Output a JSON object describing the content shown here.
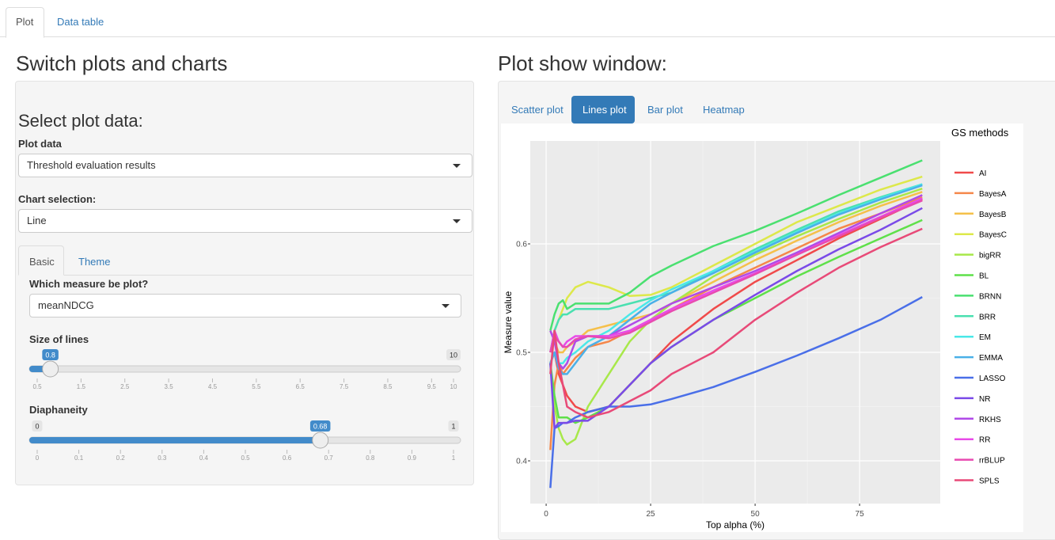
{
  "tabs": [
    "Plot",
    "Data table"
  ],
  "left": {
    "title": "Switch plots and charts",
    "panel_title": "Select plot data:",
    "plot_data": {
      "label": "Plot data",
      "value": "Threshold evaluation results"
    },
    "chart_selection": {
      "label": "Chart selection:",
      "value": "Line"
    },
    "subtabs": [
      "Basic",
      "Theme"
    ],
    "measure": {
      "label": "Which measure be plot?",
      "value": "meanNDCG"
    },
    "size_slider": {
      "label": "Size of lines",
      "min": 0.5,
      "max": 10,
      "value": 0.8,
      "ticks": [
        0.5,
        1.5,
        2.5,
        3.5,
        4.5,
        5.5,
        6.5,
        7.5,
        8.5,
        9.5,
        10
      ]
    },
    "alpha_slider": {
      "label": "Diaphaneity",
      "min": 0,
      "max": 1,
      "value": 0.68,
      "ticks": [
        0,
        0.1,
        0.2,
        0.3,
        0.4,
        0.5,
        0.6,
        0.7,
        0.8,
        0.9,
        1
      ]
    }
  },
  "right": {
    "title": "Plot show window:",
    "tabs": [
      "Scatter plot",
      "Lines plot",
      "Bar plot",
      "Heatmap"
    ]
  },
  "chart_data": {
    "type": "line",
    "xlabel": "Top alpha (%)",
    "ylabel": "Measure value",
    "legend_title": "GS methods",
    "legend": "right",
    "grid": true,
    "x": [
      1,
      2,
      3,
      4,
      5,
      7,
      10,
      15,
      20,
      25,
      30,
      40,
      50,
      60,
      70,
      80,
      90
    ],
    "xlim": [
      -3.8,
      94.3
    ],
    "xticks": [
      0,
      25,
      50,
      75
    ],
    "ylim": [
      0.3606,
      0.6949
    ],
    "yticks": [
      0.4,
      0.5,
      0.6
    ],
    "series": [
      {
        "name": "AI",
        "color": "#f04a4a",
        "values": [
          0.49,
          0.5,
          0.48,
          0.47,
          0.46,
          0.45,
          0.445,
          0.45,
          0.47,
          0.49,
          0.51,
          0.54,
          0.565,
          0.585,
          0.605,
          0.623,
          0.641
        ]
      },
      {
        "name": "BayesA",
        "color": "#f5874a",
        "values": [
          0.41,
          0.47,
          0.49,
          0.48,
          0.485,
          0.495,
          0.505,
          0.51,
          0.52,
          0.53,
          0.54,
          0.56,
          0.578,
          0.596,
          0.614,
          0.628,
          0.643
        ]
      },
      {
        "name": "BayesB",
        "color": "#f5c04a",
        "values": [
          0.5,
          0.51,
          0.5,
          0.5,
          0.505,
          0.51,
          0.52,
          0.525,
          0.53,
          0.535,
          0.545,
          0.565,
          0.585,
          0.603,
          0.62,
          0.635,
          0.648
        ]
      },
      {
        "name": "BayesC",
        "color": "#dde84a",
        "values": [
          0.5,
          0.52,
          0.53,
          0.54,
          0.55,
          0.56,
          0.565,
          0.56,
          0.552,
          0.553,
          0.56,
          0.58,
          0.6,
          0.62,
          0.635,
          0.65,
          0.662
        ]
      },
      {
        "name": "bigRR",
        "color": "#a8e84a",
        "values": [
          0.49,
          0.45,
          0.43,
          0.42,
          0.415,
          0.42,
          0.45,
          0.48,
          0.51,
          0.53,
          0.545,
          0.57,
          0.59,
          0.607,
          0.623,
          0.638,
          0.651
        ]
      },
      {
        "name": "BL",
        "color": "#5fe04a",
        "values": [
          0.49,
          0.46,
          0.44,
          0.44,
          0.44,
          0.435,
          0.44,
          0.45,
          0.47,
          0.49,
          0.505,
          0.53,
          0.55,
          0.57,
          0.588,
          0.605,
          0.622
        ]
      },
      {
        "name": "BRNN",
        "color": "#4ae070",
        "values": [
          0.52,
          0.535,
          0.545,
          0.548,
          0.54,
          0.545,
          0.545,
          0.545,
          0.555,
          0.57,
          0.58,
          0.598,
          0.612,
          0.628,
          0.645,
          0.661,
          0.677
        ]
      },
      {
        "name": "BRR",
        "color": "#4ae0b0",
        "values": [
          0.5,
          0.52,
          0.53,
          0.535,
          0.535,
          0.54,
          0.54,
          0.54,
          0.545,
          0.55,
          0.555,
          0.575,
          0.595,
          0.613,
          0.63,
          0.643,
          0.655
        ]
      },
      {
        "name": "EM",
        "color": "#4ae8e8",
        "values": [
          0.49,
          0.5,
          0.49,
          0.49,
          0.495,
          0.5,
          0.51,
          0.52,
          0.535,
          0.548,
          0.558,
          0.575,
          0.593,
          0.611,
          0.628,
          0.642,
          0.655
        ]
      },
      {
        "name": "EMMA",
        "color": "#4ab0e8",
        "values": [
          0.49,
          0.5,
          0.485,
          0.48,
          0.48,
          0.49,
          0.505,
          0.515,
          0.53,
          0.545,
          0.555,
          0.573,
          0.592,
          0.61,
          0.627,
          0.641,
          0.654
        ]
      },
      {
        "name": "LASSO",
        "color": "#4a6fe8",
        "values": [
          0.375,
          0.43,
          0.432,
          0.435,
          0.435,
          0.44,
          0.445,
          0.45,
          0.45,
          0.452,
          0.457,
          0.468,
          0.482,
          0.497,
          0.513,
          0.53,
          0.551
        ]
      },
      {
        "name": "NR",
        "color": "#7a4ae8",
        "values": [
          0.49,
          0.43,
          0.435,
          0.435,
          0.435,
          0.437,
          0.437,
          0.45,
          0.47,
          0.49,
          0.505,
          0.53,
          0.553,
          0.575,
          0.595,
          0.613,
          0.633
        ]
      },
      {
        "name": "RKHS",
        "color": "#b04ae8",
        "values": [
          0.52,
          0.51,
          0.49,
          0.485,
          0.49,
          0.51,
          0.515,
          0.515,
          0.525,
          0.535,
          0.545,
          0.56,
          0.575,
          0.592,
          0.61,
          0.628,
          0.645
        ]
      },
      {
        "name": "RR",
        "color": "#e84ae8",
        "values": [
          0.5,
          0.52,
          0.51,
          0.505,
          0.51,
          0.515,
          0.515,
          0.515,
          0.52,
          0.53,
          0.54,
          0.557,
          0.573,
          0.59,
          0.608,
          0.625,
          0.642
        ]
      },
      {
        "name": "rrBLUP",
        "color": "#e84ab0",
        "values": [
          0.5,
          0.515,
          0.51,
          0.505,
          0.505,
          0.512,
          0.515,
          0.513,
          0.518,
          0.528,
          0.538,
          0.555,
          0.572,
          0.59,
          0.607,
          0.624,
          0.64
        ]
      },
      {
        "name": "SPLS",
        "color": "#e84a78",
        "values": [
          0.48,
          0.52,
          0.49,
          0.47,
          0.45,
          0.445,
          0.44,
          0.445,
          0.455,
          0.465,
          0.48,
          0.5,
          0.53,
          0.555,
          0.578,
          0.597,
          0.614
        ]
      }
    ]
  }
}
